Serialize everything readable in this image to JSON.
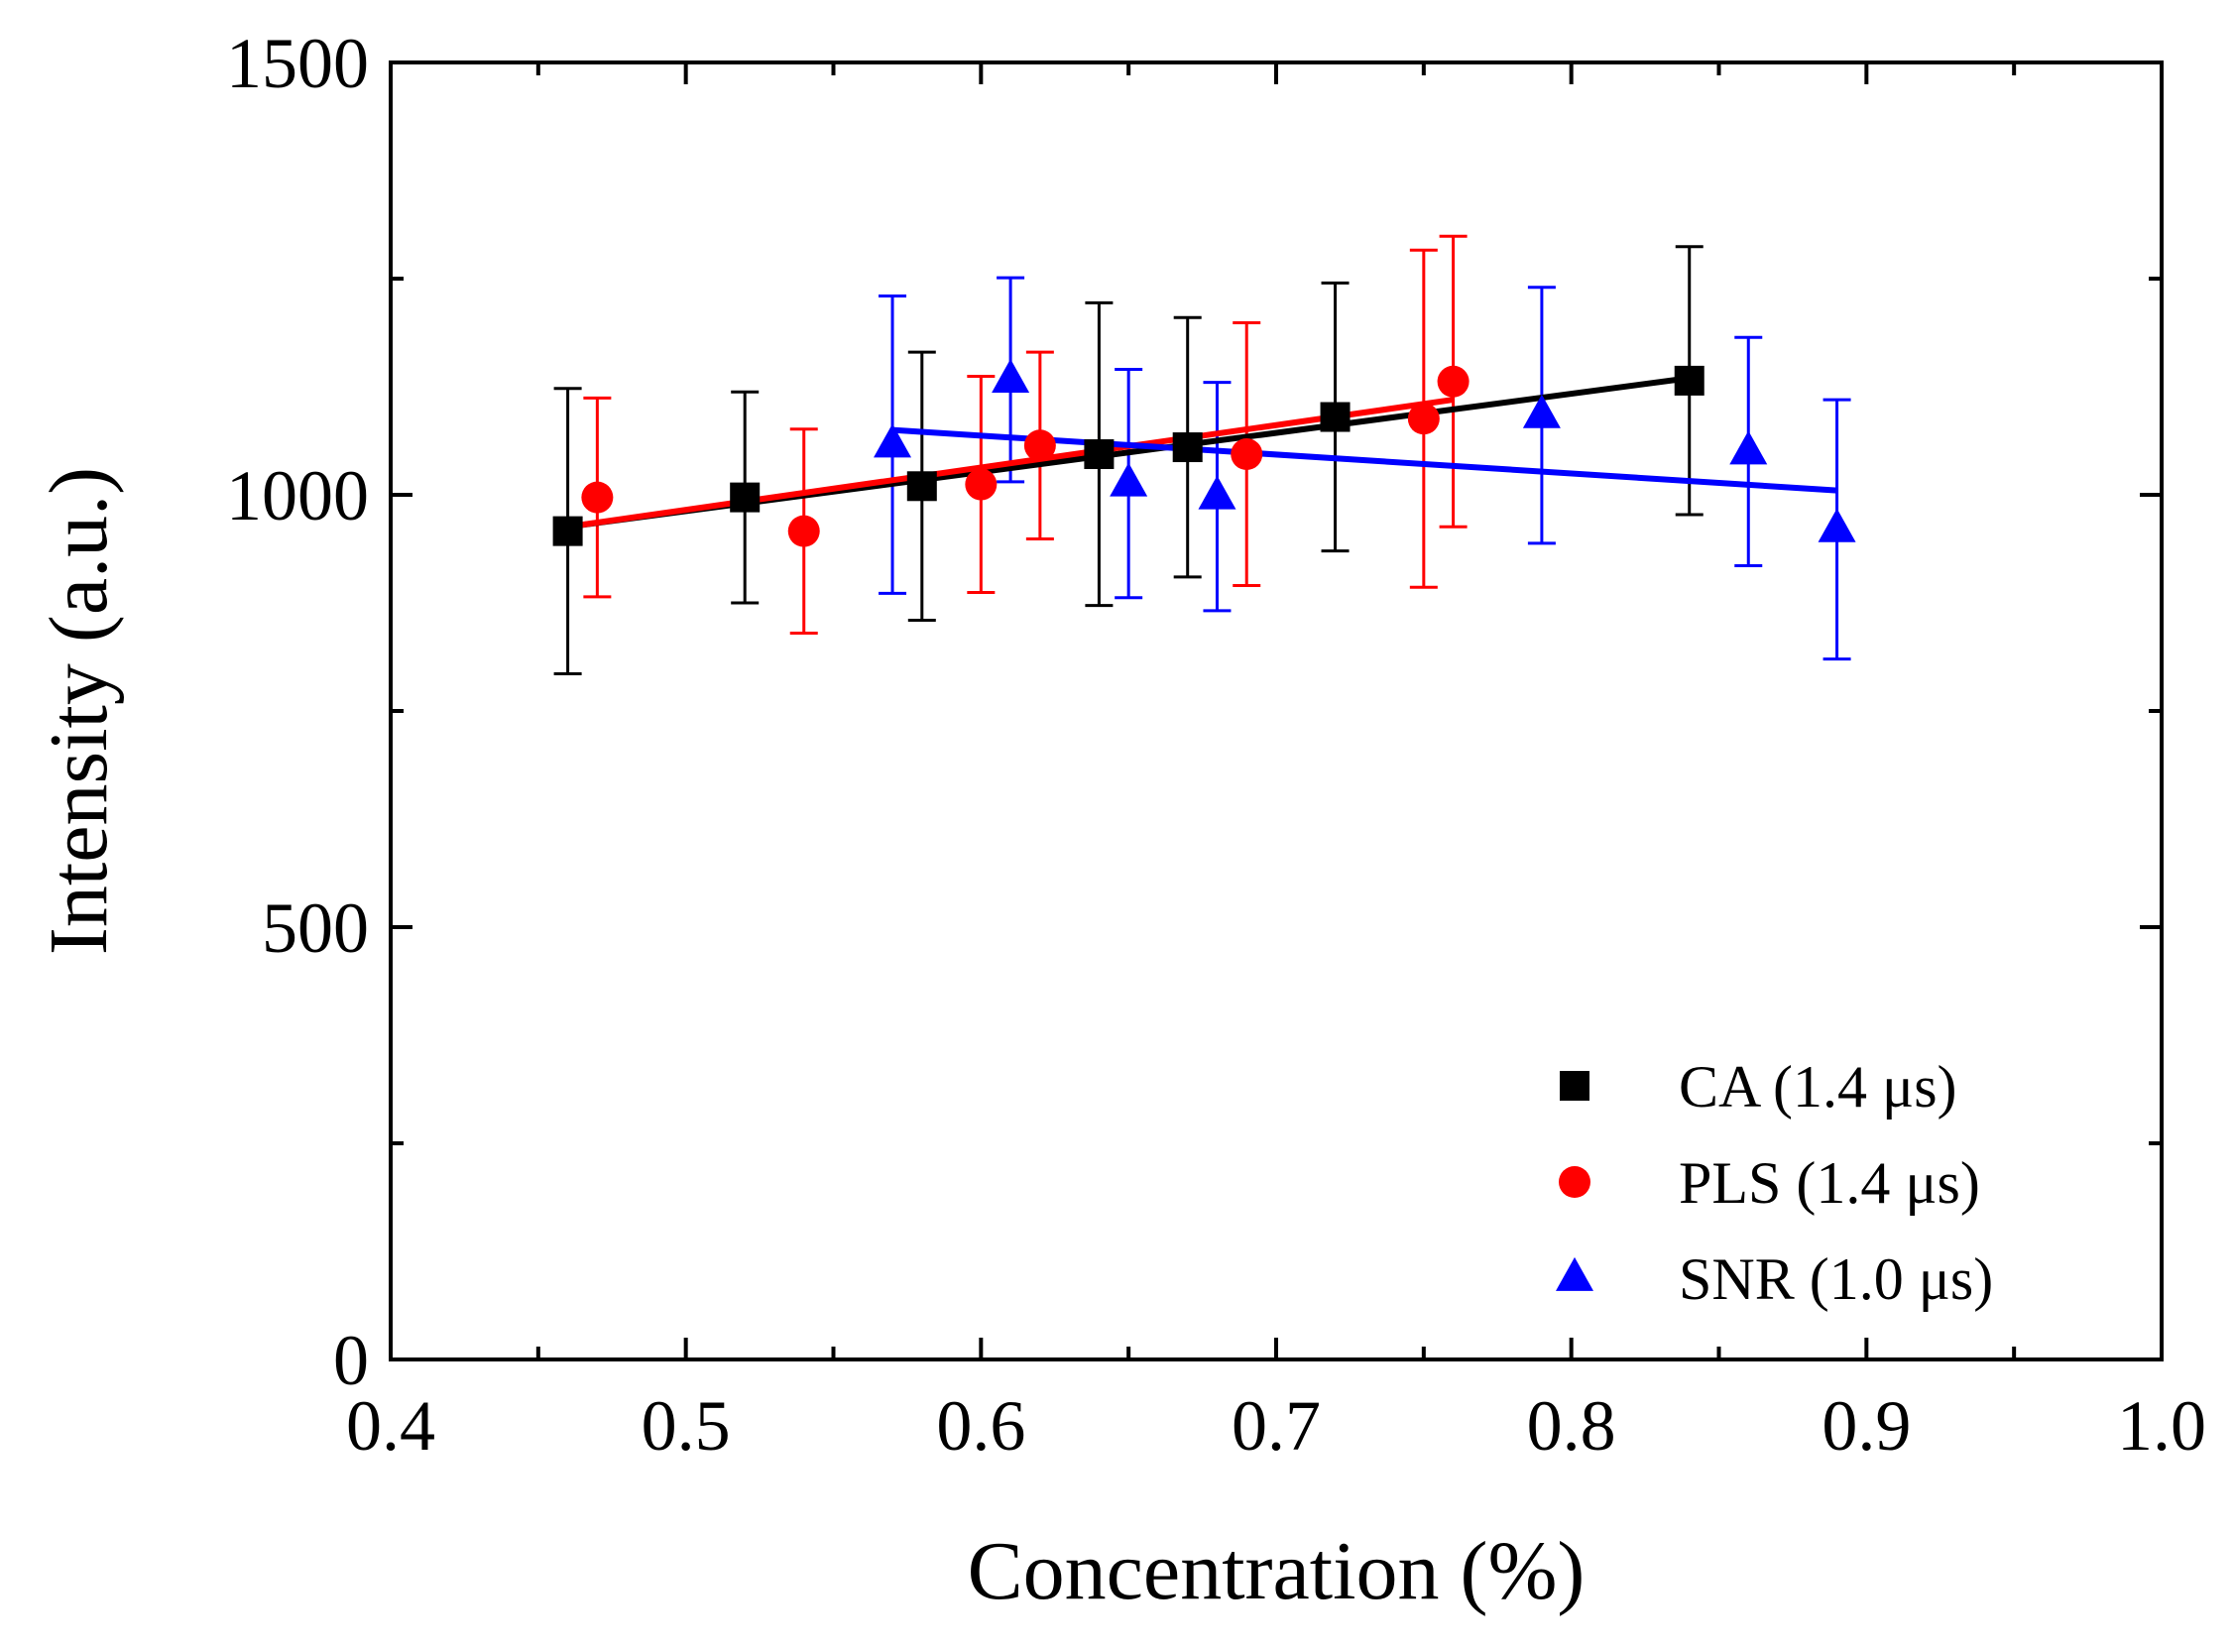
{
  "chart_data": {
    "type": "scatter",
    "title": "",
    "xlabel": "Concentration (%)",
    "ylabel": "Intensity (a.u.)",
    "xlim": [
      0.4,
      1.0
    ],
    "ylim": [
      0,
      1500
    ],
    "x_ticks": [
      "0.4",
      "0.5",
      "0.6",
      "0.7",
      "0.8",
      "0.9",
      "1.0"
    ],
    "x_tick_values": [
      0.4,
      0.5,
      0.6,
      0.7,
      0.8,
      0.9,
      1.0
    ],
    "y_ticks": [
      "0",
      "500",
      "1000",
      "1500"
    ],
    "y_tick_values": [
      0,
      500,
      1000,
      1500
    ],
    "y_minor_ticks": [
      250,
      750,
      1250
    ],
    "x_minor_ticks": [
      0.45,
      0.55,
      0.65,
      0.75,
      0.85,
      0.95
    ],
    "legend_position": "bottom-right",
    "grid": false,
    "series": [
      {
        "name": "CA (1.4 μs)",
        "marker": "square",
        "color": "#000000",
        "points": [
          {
            "x": 0.46,
            "y": 958,
            "err": 165
          },
          {
            "x": 0.52,
            "y": 997,
            "err": 122
          },
          {
            "x": 0.58,
            "y": 1010,
            "err": 155
          },
          {
            "x": 0.64,
            "y": 1047,
            "err": 175
          },
          {
            "x": 0.67,
            "y": 1055,
            "err": 150
          },
          {
            "x": 0.72,
            "y": 1090,
            "err": 155
          },
          {
            "x": 0.84,
            "y": 1132,
            "err": 155
          }
        ],
        "fit": {
          "x": [
            0.46,
            0.84
          ],
          "y": [
            963,
            1135
          ]
        }
      },
      {
        "name": "PLS (1.4 μs)",
        "marker": "circle",
        "color": "#ff0000",
        "points": [
          {
            "x": 0.47,
            "y": 997,
            "err": 115
          },
          {
            "x": 0.54,
            "y": 958,
            "err": 118
          },
          {
            "x": 0.6,
            "y": 1012,
            "err": 125
          },
          {
            "x": 0.62,
            "y": 1057,
            "err": 108
          },
          {
            "x": 0.69,
            "y": 1047,
            "err": 152
          },
          {
            "x": 0.75,
            "y": 1088,
            "err": 195
          },
          {
            "x": 0.76,
            "y": 1131,
            "err": 168
          }
        ],
        "fit": {
          "x": [
            0.46,
            0.76
          ],
          "y": [
            963,
            1110
          ]
        }
      },
      {
        "name": "SNR (1.0 μs)",
        "marker": "triangle",
        "color": "#0000ff",
        "points": [
          {
            "x": 0.57,
            "y": 1058,
            "err": 172
          },
          {
            "x": 0.61,
            "y": 1133,
            "err": 118
          },
          {
            "x": 0.65,
            "y": 1013,
            "err": 132
          },
          {
            "x": 0.68,
            "y": 998,
            "err": 132
          },
          {
            "x": 0.79,
            "y": 1092,
            "err": 148
          },
          {
            "x": 0.86,
            "y": 1050,
            "err": 132
          },
          {
            "x": 0.89,
            "y": 960,
            "err": 150
          }
        ],
        "fit": {
          "x": [
            0.57,
            0.89
          ],
          "y": [
            1075,
            1005
          ]
        }
      }
    ]
  }
}
